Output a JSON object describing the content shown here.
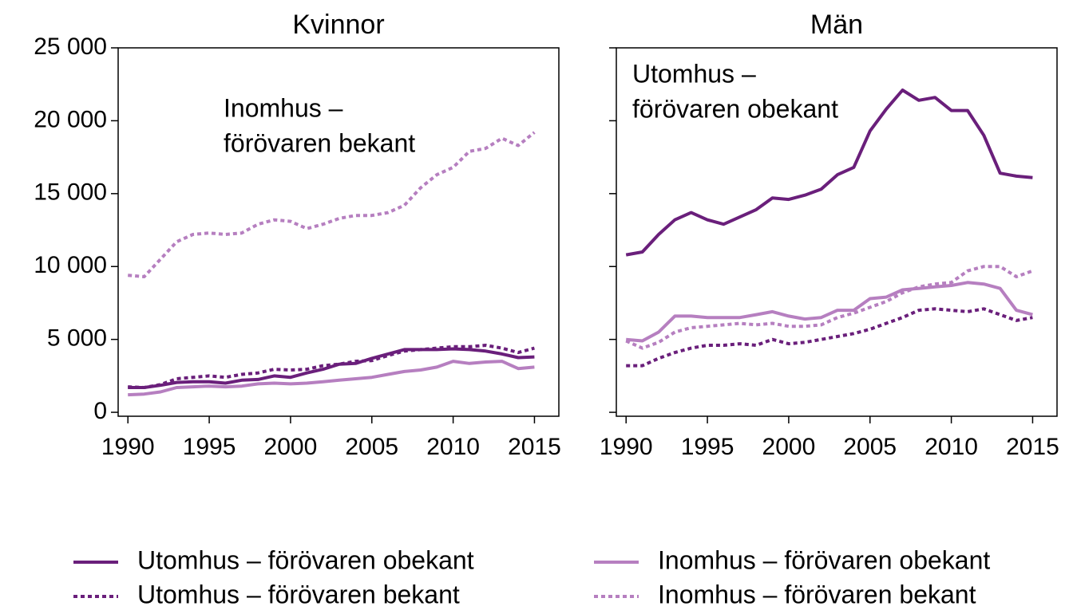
{
  "chart_data": [
    {
      "type": "line",
      "title": "Kvinnor",
      "annotation": [
        "Inomhus –",
        "förövaren bekant"
      ],
      "x": [
        1990,
        1991,
        1992,
        1993,
        1994,
        1995,
        1996,
        1997,
        1998,
        1999,
        2000,
        2001,
        2002,
        2003,
        2004,
        2005,
        2006,
        2007,
        2008,
        2009,
        2010,
        2011,
        2012,
        2013,
        2014,
        2015
      ],
      "xlim": [
        1989.4,
        2016.5
      ],
      "xticks": [
        1990,
        1995,
        2000,
        2005,
        2010,
        2015
      ],
      "ylim": [
        -270,
        25000
      ],
      "yticks": [
        {
          "value": 0,
          "label": "0"
        },
        {
          "value": 5000,
          "label": "5 000"
        },
        {
          "value": 10000,
          "label": "10 000"
        },
        {
          "value": 15000,
          "label": "15 000"
        },
        {
          "value": 20000,
          "label": "20 000"
        },
        {
          "value": 25000,
          "label": "25 000"
        }
      ],
      "series": [
        {
          "name": "Utomhus – förövaren obekant",
          "color": "#6a1f7b",
          "dash": false,
          "values": [
            1700,
            1700,
            1850,
            2050,
            2100,
            2100,
            2000,
            2200,
            2250,
            2500,
            2400,
            2700,
            2950,
            3300,
            3350,
            3700,
            4000,
            4300,
            4300,
            4300,
            4350,
            4300,
            4200,
            4000,
            3750,
            3800
          ]
        },
        {
          "name": "Utomhus – förövaren bekant",
          "color": "#6a1f7b",
          "dash": true,
          "values": [
            1750,
            1700,
            1900,
            2300,
            2400,
            2500,
            2400,
            2600,
            2700,
            2950,
            2900,
            2950,
            3200,
            3300,
            3500,
            3550,
            3900,
            4200,
            4300,
            4400,
            4500,
            4500,
            4600,
            4400,
            4100,
            4400
          ]
        },
        {
          "name": "Inomhus – förövaren obekant",
          "color": "#b67fc0",
          "dash": false,
          "values": [
            1200,
            1250,
            1400,
            1700,
            1750,
            1800,
            1750,
            1800,
            1950,
            2000,
            1950,
            2000,
            2100,
            2200,
            2300,
            2400,
            2600,
            2800,
            2900,
            3100,
            3500,
            3350,
            3450,
            3500,
            3000,
            3100
          ]
        },
        {
          "name": "Inomhus – förövaren bekant",
          "color": "#b67fc0",
          "dash": true,
          "values": [
            9400,
            9300,
            10500,
            11700,
            12200,
            12300,
            12200,
            12300,
            12900,
            13200,
            13100,
            12600,
            12900,
            13300,
            13500,
            13500,
            13700,
            14200,
            15400,
            16300,
            16800,
            17900,
            18100,
            18800,
            18300,
            19200
          ]
        }
      ]
    },
    {
      "type": "line",
      "title": "Män",
      "annotation": [
        "Utomhus –",
        "förövaren obekant"
      ],
      "x": [
        1990,
        1991,
        1992,
        1993,
        1994,
        1995,
        1996,
        1997,
        1998,
        1999,
        2000,
        2001,
        2002,
        2003,
        2004,
        2005,
        2006,
        2007,
        2008,
        2009,
        2010,
        2011,
        2012,
        2013,
        2014,
        2015
      ],
      "xlim": [
        1989.4,
        2016.5
      ],
      "xticks": [
        1990,
        1995,
        2000,
        2005,
        2010,
        2015
      ],
      "ylim": [
        -270,
        25000
      ],
      "yticks": [
        0,
        5000,
        10000,
        15000,
        20000,
        25000
      ],
      "series": [
        {
          "color": "#6a1f7b",
          "dash": false,
          "values": [
            10800,
            11000,
            12200,
            13200,
            13700,
            13200,
            12900,
            13400,
            13900,
            14700,
            14600,
            14900,
            15300,
            16300,
            16800,
            19300,
            20800,
            22100,
            21400,
            21600,
            20700,
            20700,
            19000,
            16400,
            16200,
            16100
          ]
        },
        {
          "color": "#6a1f7b",
          "dash": true,
          "values": [
            3200,
            3200,
            3700,
            4100,
            4400,
            4600,
            4600,
            4700,
            4600,
            5000,
            4700,
            4800,
            5000,
            5200,
            5400,
            5700,
            6100,
            6500,
            7000,
            7100,
            7000,
            6900,
            7100,
            6700,
            6300,
            6500
          ]
        },
        {
          "color": "#b67fc0",
          "dash": false,
          "values": [
            5000,
            4900,
            5500,
            6600,
            6600,
            6500,
            6500,
            6500,
            6700,
            6900,
            6600,
            6400,
            6500,
            7000,
            7000,
            7800,
            7900,
            8400,
            8500,
            8600,
            8700,
            8900,
            8800,
            8500,
            7000,
            6700
          ]
        },
        {
          "color": "#b67fc0",
          "dash": true,
          "values": [
            4900,
            4400,
            4800,
            5500,
            5800,
            5900,
            6000,
            6100,
            6000,
            6100,
            5900,
            5900,
            6000,
            6500,
            6800,
            7200,
            7600,
            8200,
            8600,
            8800,
            8900,
            9700,
            10000,
            10000,
            9300,
            9700
          ]
        }
      ]
    }
  ]
}
